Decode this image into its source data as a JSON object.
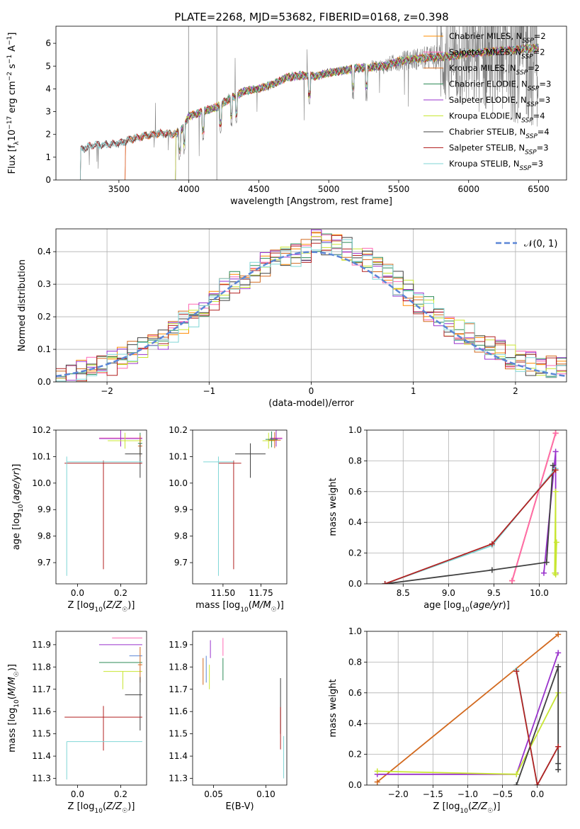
{
  "figure_title": "PLATE=2268, MJD=53682, FIBERID=0168, z=0.398",
  "colors": {
    "chabrier_miles": "#ff8c00",
    "salpeter_miles": "#ff69b4",
    "kroupa_miles": "#d2691e",
    "chabrier_elodie": "#2e8b57",
    "salpeter_elodie": "#9932cc",
    "kroupa_elodie": "#c8e632",
    "chabrier_stelib": "#404040",
    "salpeter_stelib": "#b22222",
    "kroupa_stelib": "#7fd6d6",
    "gauss": "#5b86d6",
    "data": "#808080"
  },
  "chart_data": [
    {
      "id": "spectrum",
      "type": "line",
      "title": "PLATE=2268, MJD=53682, FIBERID=0168, z=0.398",
      "xlabel": "wavelength [Angstrom, rest frame]",
      "ylabel": "Flux [f_λ 10^-17 erg cm^-2 s^-1 A^-1]",
      "xlim": [
        3050,
        6700
      ],
      "ylim": [
        0,
        6.75
      ],
      "xticks": [
        "3500",
        "4000",
        "4500",
        "5000",
        "5500",
        "6000",
        "6500"
      ],
      "yticks": [
        "0",
        "1",
        "2",
        "3",
        "4",
        "5",
        "6"
      ],
      "grid": false,
      "legend_position": "top-right",
      "legend": [
        "Chabrier MILES, N_SSP=2",
        "Salpeter MILES, N_SSP=2",
        "Kroupa MILES, N_SSP=2",
        "Chabrier ELODIE, N_SSP=3",
        "Salpeter ELODIE, N_SSP=3",
        "Kroupa ELODIE, N_SSP=4",
        "Chabrier STELIB, N_SSP=4",
        "Salpeter STELIB, N_SSP=3",
        "Kroupa STELIB, N_SSP=3"
      ],
      "continuum_anchors": {
        "x": [
          3220,
          3300,
          3400,
          3500,
          3600,
          3700,
          3800,
          3900,
          3950,
          4000,
          4100,
          4200,
          4300,
          4400,
          4500,
          4600,
          4700,
          4800,
          4900,
          5000,
          5100,
          5200,
          5300,
          5400,
          5500,
          5600,
          5700,
          5800,
          5900,
          6000,
          6100,
          6200,
          6300,
          6400,
          6500
        ],
        "y": [
          1.3,
          1.5,
          1.55,
          1.6,
          1.8,
          1.95,
          2.05,
          2.0,
          2.2,
          2.8,
          3.0,
          3.2,
          3.6,
          3.9,
          4.0,
          4.2,
          4.5,
          4.6,
          4.55,
          4.7,
          4.8,
          4.9,
          4.95,
          5.0,
          5.2,
          5.3,
          5.35,
          5.4,
          5.45,
          5.55,
          5.6,
          5.65,
          5.7,
          5.75,
          5.8
        ]
      }
    },
    {
      "id": "residuals",
      "type": "line",
      "xlabel": "(data-model)/error",
      "ylabel": "Normed distribution",
      "xlim": [
        -2.5,
        2.5
      ],
      "ylim": [
        0,
        0.47
      ],
      "xticks": [
        "−2",
        "−1",
        "0",
        "1",
        "2"
      ],
      "yticks": [
        "0.0",
        "0.1",
        "0.2",
        "0.3",
        "0.4"
      ],
      "grid": true,
      "legend_position": "top-right",
      "legend": [
        "𝒩(0, 1)"
      ]
    },
    {
      "id": "age_vs_Z",
      "type": "scatter",
      "xlabel": "Z [log10(Z/Z☉)]",
      "ylabel": "age [log10(age/yr)]",
      "xlim": [
        -0.1,
        0.32
      ],
      "ylim": [
        9.62,
        10.2
      ],
      "xticks": [
        "0.0",
        "0.2"
      ],
      "yticks": [
        "9.7",
        "9.8",
        "9.9",
        "10.0",
        "10.1",
        "10.2"
      ],
      "points": [
        {
          "model": "salpeter_miles",
          "x": 0.2,
          "y": 10.17,
          "xerr": [
            0.1,
            0.1
          ],
          "yerr": [
            0.03,
            0.03
          ]
        },
        {
          "model": "salpeter_elodie",
          "x": 0.2,
          "y": 10.168,
          "xerr": [
            0.1,
            0.1
          ],
          "yerr": [
            0.03,
            0.03
          ]
        },
        {
          "model": "kroupa_elodie",
          "x": 0.22,
          "y": 10.16,
          "xerr": [
            0.08,
            0.08
          ],
          "yerr": [
            0.03,
            0.03
          ]
        },
        {
          "model": "chabrier_elodie",
          "x": 0.29,
          "y": 10.15,
          "xerr": [
            0.01,
            0.01
          ],
          "yerr": [
            0.04,
            0.04
          ]
        },
        {
          "model": "kroupa_miles",
          "x": 0.29,
          "y": 10.14,
          "xerr": [
            0.01,
            0.01
          ],
          "yerr": [
            0.04,
            0.04
          ]
        },
        {
          "model": "chabrier_stelib",
          "x": 0.29,
          "y": 10.11,
          "xerr": [
            0.07,
            0.01
          ],
          "yerr": [
            0.09,
            0.04
          ]
        },
        {
          "model": "salpeter_stelib",
          "x": 0.12,
          "y": 10.075,
          "xerr": [
            0.18,
            0.18
          ],
          "yerr": [
            0.4,
            0.01
          ]
        },
        {
          "model": "kroupa_stelib",
          "x": -0.05,
          "y": 10.08,
          "xerr": [
            0.0,
            0.35
          ],
          "yerr": [
            0.43,
            0.02
          ]
        }
      ]
    },
    {
      "id": "age_vs_mass",
      "type": "scatter",
      "xlabel": "mass [log10(M/M☉)]",
      "ylabel": "",
      "xlim": [
        11.3,
        11.92
      ],
      "ylim": [
        9.62,
        10.2
      ],
      "xticks": [
        "11.50",
        "11.75"
      ],
      "yticks": [
        "9.7",
        "9.8",
        "9.9",
        "10.0",
        "10.1",
        "10.2"
      ],
      "points": [
        {
          "model": "salpeter_miles",
          "x": 11.85,
          "y": 10.17,
          "xerr": [
            0.04,
            0.04
          ],
          "yerr": [
            0.03,
            0.03
          ]
        },
        {
          "model": "salpeter_elodie",
          "x": 11.85,
          "y": 10.168,
          "xerr": [
            0.04,
            0.04
          ],
          "yerr": [
            0.03,
            0.03
          ]
        },
        {
          "model": "kroupa_elodie",
          "x": 11.8,
          "y": 10.16,
          "xerr": [
            0.04,
            0.04
          ],
          "yerr": [
            0.03,
            0.03
          ]
        },
        {
          "model": "chabrier_elodie",
          "x": 11.82,
          "y": 10.165,
          "xerr": [
            0.04,
            0.04
          ],
          "yerr": [
            0.03,
            0.03
          ]
        },
        {
          "model": "kroupa_miles",
          "x": 11.84,
          "y": 10.162,
          "xerr": [
            0.04,
            0.04
          ],
          "yerr": [
            0.03,
            0.03
          ]
        },
        {
          "model": "chabrier_stelib",
          "x": 11.68,
          "y": 10.11,
          "xerr": [
            0.1,
            0.1
          ],
          "yerr": [
            0.09,
            0.04
          ]
        },
        {
          "model": "salpeter_stelib",
          "x": 11.57,
          "y": 10.075,
          "xerr": [
            0.1,
            0.05
          ],
          "yerr": [
            0.4,
            0.01
          ]
        },
        {
          "model": "kroupa_stelib",
          "x": 11.47,
          "y": 10.08,
          "xerr": [
            0.1,
            0.1
          ],
          "yerr": [
            0.43,
            0.02
          ]
        }
      ]
    },
    {
      "id": "mass_weight_vs_age",
      "type": "line",
      "xlabel": "age [log10(age/yr)]",
      "ylabel": "mass weight",
      "xlim": [
        8.1,
        10.3
      ],
      "ylim": [
        0,
        1.0
      ],
      "xticks": [
        "8.5",
        "9.0",
        "9.5",
        "10.0"
      ],
      "yticks": [
        "0.0",
        "0.2",
        "0.4",
        "0.6",
        "0.8",
        "1.0"
      ],
      "grid": true,
      "series": [
        {
          "model": "kroupa_miles",
          "x": [
            9.7,
            10.18
          ],
          "y": [
            0.02,
            0.98
          ]
        },
        {
          "model": "chabrier_miles",
          "x": [
            9.7,
            10.18
          ],
          "y": [
            0.02,
            0.98
          ]
        },
        {
          "model": "salpeter_miles",
          "x": [
            9.7,
            10.18
          ],
          "y": [
            0.02,
            0.98
          ]
        },
        {
          "model": "salpeter_elodie",
          "x": [
            10.05,
            10.18,
            10.18
          ],
          "y": [
            0.07,
            0.86,
            0.07
          ]
        },
        {
          "model": "kroupa_elodie",
          "x": [
            10.17,
            10.18,
            10.18,
            10.19
          ],
          "y": [
            0.07,
            0.6,
            0.06,
            0.27
          ]
        },
        {
          "model": "chabrier_stelib",
          "x": [
            8.3,
            9.48,
            10.08,
            10.15
          ],
          "y": [
            0.0,
            0.09,
            0.14,
            0.77
          ]
        },
        {
          "model": "kroupa_stelib",
          "x": [
            8.3,
            9.48,
            10.18
          ],
          "y": [
            0.0,
            0.25,
            0.75
          ]
        },
        {
          "model": "salpeter_stelib",
          "x": [
            8.3,
            9.48,
            10.18
          ],
          "y": [
            0.0,
            0.26,
            0.74
          ]
        }
      ]
    },
    {
      "id": "mass_vs_Z",
      "type": "scatter",
      "xlabel": "Z [log10(Z/Z☉)]",
      "ylabel": "mass [log10(M/M☉)]",
      "xlim": [
        -0.1,
        0.32
      ],
      "ylim": [
        11.27,
        11.96
      ],
      "xticks": [
        "0.0",
        "0.2"
      ],
      "yticks": [
        "11.3",
        "11.4",
        "11.5",
        "11.6",
        "11.7",
        "11.8",
        "11.9"
      ],
      "points": [
        {
          "model": "salpeter_miles",
          "x": 0.23,
          "y": 11.93,
          "xerr": [
            0.07,
            0.07
          ],
          "yerr": [
            0.0,
            0.0
          ]
        },
        {
          "model": "salpeter_elodie",
          "x": 0.2,
          "y": 11.9,
          "xerr": [
            0.1,
            0.1
          ],
          "yerr": [
            0.0,
            0.0
          ]
        },
        {
          "model": "chabrier_elodie",
          "x": 0.2,
          "y": 11.82,
          "xerr": [
            0.1,
            0.1
          ],
          "yerr": [
            0.0,
            0.0
          ]
        },
        {
          "model": "kroupa_elodie",
          "x": 0.21,
          "y": 11.78,
          "xerr": [
            0.09,
            0.09
          ],
          "yerr": [
            0.08,
            0.0
          ]
        },
        {
          "model": "gauss",
          "x": 0.27,
          "y": 11.85,
          "xerr": [
            0.03,
            0.03
          ],
          "yerr": [
            0.0,
            0.0
          ]
        },
        {
          "model": "kroupa_miles",
          "x": 0.29,
          "y": 11.81,
          "xerr": [
            0.01,
            0.01
          ],
          "yerr": [
            0.08,
            0.08
          ]
        },
        {
          "model": "chabrier_stelib",
          "x": 0.29,
          "y": 11.675,
          "xerr": [
            0.07,
            0.01
          ],
          "yerr": [
            0.16,
            0.08
          ]
        },
        {
          "model": "salpeter_stelib",
          "x": 0.12,
          "y": 11.575,
          "xerr": [
            0.18,
            0.18
          ],
          "yerr": [
            0.15,
            0.05
          ]
        },
        {
          "model": "kroupa_stelib",
          "x": -0.05,
          "y": 11.465,
          "xerr": [
            0.0,
            0.35
          ],
          "yerr": [
            0.17,
            0.0
          ]
        }
      ]
    },
    {
      "id": "mass_vs_ebv",
      "type": "scatter",
      "xlabel": "E(B-V)",
      "ylabel": "",
      "xlim": [
        0.03,
        0.12
      ],
      "ylim": [
        11.27,
        11.96
      ],
      "xticks": [
        "0.05",
        "0.10"
      ],
      "yticks": [
        "11.3",
        "11.4",
        "11.5",
        "11.6",
        "11.7",
        "11.8",
        "11.9"
      ],
      "points": [
        {
          "model": "kroupa_miles",
          "x": 0.04,
          "y": 11.78,
          "yerr": [
            0.06,
            0.06
          ]
        },
        {
          "model": "gauss",
          "x": 0.043,
          "y": 11.79,
          "yerr": [
            0.06,
            0.06
          ]
        },
        {
          "model": "kroupa_elodie",
          "x": 0.046,
          "y": 11.78,
          "yerr": [
            0.08,
            0.03
          ]
        },
        {
          "model": "salpeter_elodie",
          "x": 0.047,
          "y": 11.88,
          "yerr": [
            0.04,
            0.04
          ]
        },
        {
          "model": "salpeter_miles",
          "x": 0.059,
          "y": 11.89,
          "yerr": [
            0.04,
            0.04
          ]
        },
        {
          "model": "chabrier_elodie",
          "x": 0.059,
          "y": 11.8,
          "yerr": [
            0.06,
            0.04
          ]
        },
        {
          "model": "chabrier_stelib",
          "x": 0.114,
          "y": 11.6,
          "yerr": [
            0.1,
            0.15
          ]
        },
        {
          "model": "salpeter_stelib",
          "x": 0.114,
          "y": 11.55,
          "yerr": [
            0.12,
            0.07
          ]
        },
        {
          "model": "kroupa_stelib",
          "x": 0.117,
          "y": 11.39,
          "yerr": [
            0.09,
            0.1
          ]
        }
      ]
    },
    {
      "id": "mass_weight_vs_Z",
      "type": "line",
      "xlabel": "Z [log10(Z/Z☉)]",
      "ylabel": "mass weight",
      "xlim": [
        -2.45,
        0.42
      ],
      "ylim": [
        0,
        1.0
      ],
      "xticks": [
        "−2.0",
        "−1.5",
        "−1.0",
        "−0.5",
        "0.0"
      ],
      "yticks": [
        "0.0",
        "0.2",
        "0.4",
        "0.6",
        "0.8",
        "1.0"
      ],
      "grid": true,
      "series": [
        {
          "model": "kroupa_miles",
          "x": [
            -2.3,
            0.3
          ],
          "y": [
            0.02,
            0.98
          ]
        },
        {
          "model": "salpeter_elodie",
          "x": [
            -2.3,
            -0.3,
            0.3
          ],
          "y": [
            0.07,
            0.07,
            0.86
          ]
        },
        {
          "model": "kroupa_elodie",
          "x": [
            -2.3,
            -0.3,
            0.3
          ],
          "y": [
            0.09,
            0.07,
            0.6
          ]
        },
        {
          "model": "chabrier_stelib",
          "x": [
            -0.3,
            0.3,
            0.3,
            0.3
          ],
          "y": [
            0.0,
            0.77,
            0.14,
            0.1
          ]
        },
        {
          "model": "kroupa_stelib",
          "x": [
            -0.3,
            0.0,
            0.3
          ],
          "y": [
            0.75,
            0.0,
            0.25
          ]
        },
        {
          "model": "salpeter_stelib",
          "x": [
            -0.3,
            0.0,
            0.3
          ],
          "y": [
            0.74,
            0.0,
            0.25
          ]
        }
      ]
    }
  ]
}
